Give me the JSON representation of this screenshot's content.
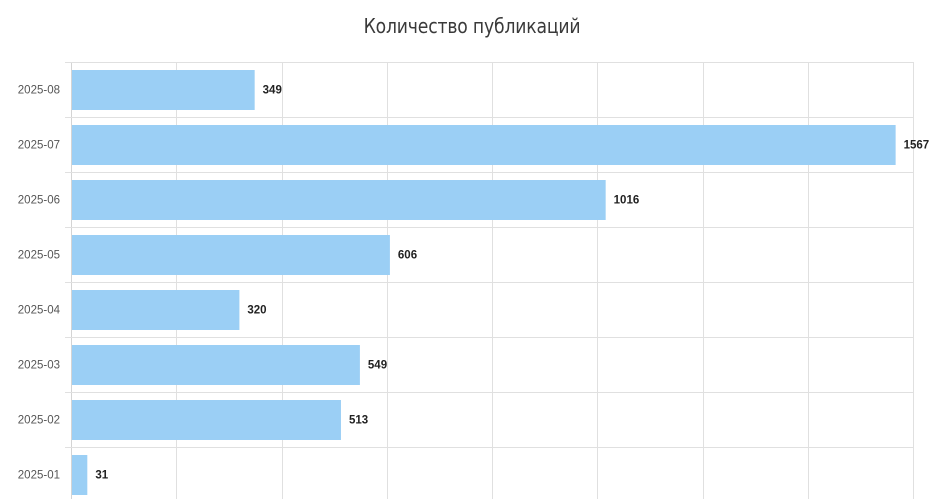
{
  "chart_data": {
    "type": "bar",
    "orientation": "horizontal",
    "title": "Количество публикаций",
    "categories": [
      "2025-08",
      "2025-07",
      "2025-06",
      "2025-05",
      "2025-04",
      "2025-03",
      "2025-02",
      "2025-01"
    ],
    "values": [
      349,
      1567,
      1016,
      606,
      320,
      549,
      513,
      31
    ],
    "xlim": [
      0,
      1600
    ],
    "grid": true,
    "legend": "none",
    "bar_color": "#9bcff5"
  }
}
